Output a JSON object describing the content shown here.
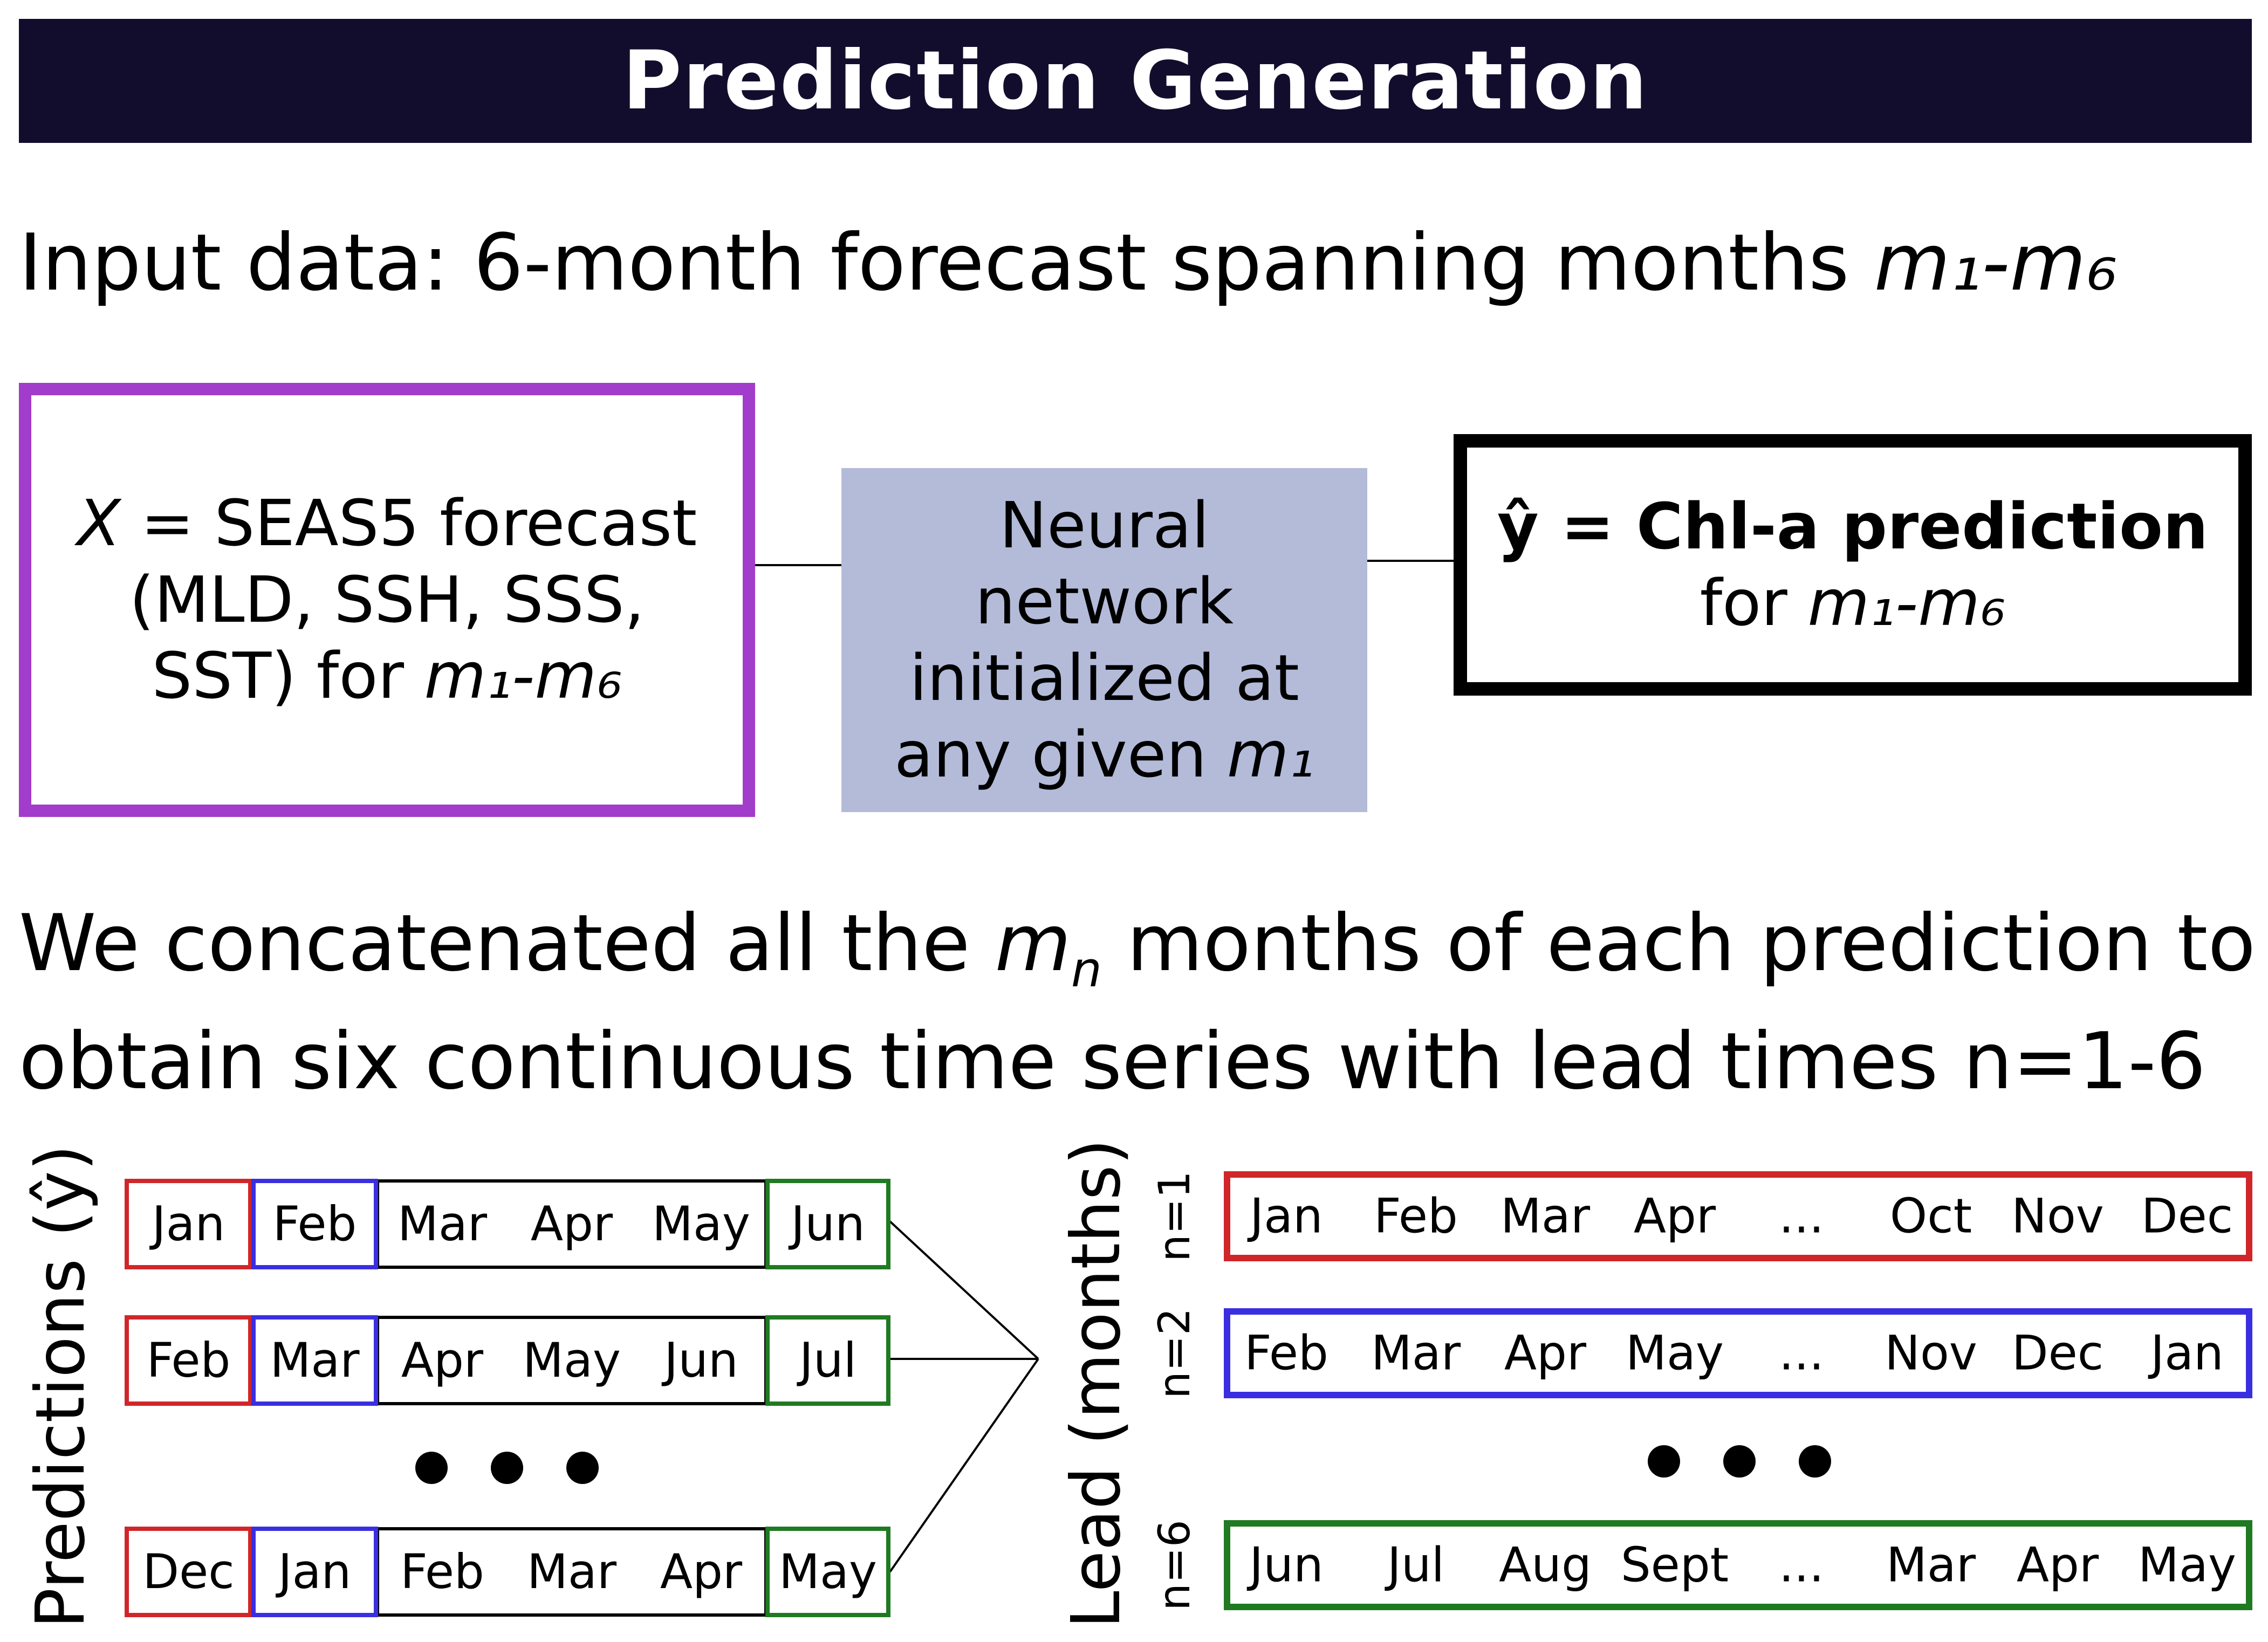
{
  "title": "Prediction Generation",
  "input_line": {
    "text": "Input data: 6-month forecast spanning months ",
    "range": "m₁-m₆"
  },
  "input_box": {
    "var": "X",
    "line1_rest": " = SEAS5 forecast",
    "line2": "(MLD, SSH, SSS,",
    "line3": "SST) for ",
    "range": "m₁-m₆"
  },
  "nn_box": {
    "line1": "Neural",
    "line2": "network",
    "line3": "initialized at",
    "line4": "any given ",
    "m1": "m₁"
  },
  "output_box": {
    "line1": "ŷ = Chl-a prediction",
    "line2": "for ",
    "range": "m₁-m₆"
  },
  "concat_text": {
    "part1": "We concatenated all the ",
    "m": "m",
    "sub": "n",
    "part2": " months of each prediction to",
    "line2": "obtain six continuous time series with lead times n=1-6"
  },
  "left_axis_label": "Predictions (ŷ)",
  "mid_axis_label": "Lead (months)",
  "predictions": [
    [
      "Jan",
      "Feb",
      "Mar",
      "Apr",
      "May",
      "Jun"
    ],
    [
      "Feb",
      "Mar",
      "Apr",
      "May",
      "Jun",
      "Jul"
    ],
    [
      "Dec",
      "Jan",
      "Feb",
      "Mar",
      "Apr",
      "May"
    ]
  ],
  "lead_series": [
    {
      "label": "n=1",
      "months": [
        "Jan",
        "Feb",
        "Mar",
        "Apr",
        "...",
        "Oct",
        "Nov",
        "Dec"
      ],
      "color": "#d0262a"
    },
    {
      "label": "n=2",
      "months": [
        "Feb",
        "Mar",
        "Apr",
        "May",
        "...",
        "Nov",
        "Dec",
        "Jan"
      ],
      "color": "#3a2fe0"
    },
    {
      "label": "n=6",
      "months": [
        "Jun",
        "Jul",
        "Aug",
        "Sept",
        "...",
        "Mar",
        "Apr",
        "May"
      ],
      "color": "#1f7a22"
    }
  ],
  "colors": {
    "banner": "#130d2d",
    "input_border": "#a23ccb",
    "nn_fill": "#b3bbd9",
    "lead1": "#d0262a",
    "lead2": "#3a2fe0",
    "lead6": "#1f7a22"
  }
}
